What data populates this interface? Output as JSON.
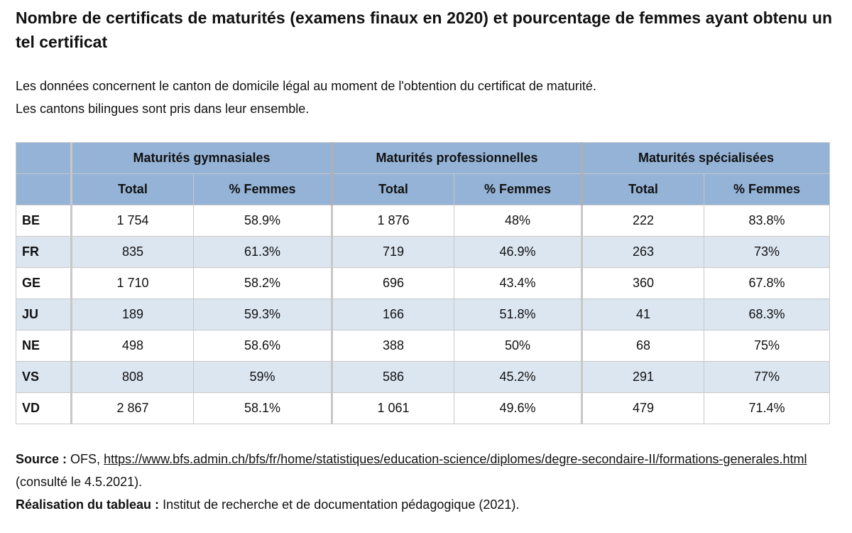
{
  "title": "Nombre de certificats de maturités (examens finaux en 2020) et pourcentage de femmes ayant obtenu un tel certificat",
  "subtitle": [
    "Les données concernent le canton de domicile légal au moment de l'obtention du certificat de maturité.",
    "Les cantons bilingues sont pris dans leur ensemble."
  ],
  "table": {
    "groups": [
      "Maturités gymnasiales",
      "Maturités professionnelles",
      "Maturités spécialisées"
    ],
    "subheaders": [
      "Total",
      "% Femmes",
      "Total",
      "% Femmes",
      "Total",
      "% Femmes"
    ],
    "rows": [
      {
        "canton": "BE",
        "values": [
          "1 754",
          "58.9%",
          "1 876",
          "48%",
          "222",
          "83.8%"
        ]
      },
      {
        "canton": "FR",
        "values": [
          "835",
          "61.3%",
          "719",
          "46.9%",
          "263",
          "73%"
        ]
      },
      {
        "canton": "GE",
        "values": [
          "1 710",
          "58.2%",
          "696",
          "43.4%",
          "360",
          "67.8%"
        ]
      },
      {
        "canton": "JU",
        "values": [
          "189",
          "59.3%",
          "166",
          "51.8%",
          "41",
          "68.3%"
        ]
      },
      {
        "canton": "NE",
        "values": [
          "498",
          "58.6%",
          "388",
          "50%",
          "68",
          "75%"
        ]
      },
      {
        "canton": "VS",
        "values": [
          "808",
          "59%",
          "586",
          "45.2%",
          "291",
          "77%"
        ]
      },
      {
        "canton": "VD",
        "values": [
          "2 867",
          "58.1%",
          "1 061",
          "49.6%",
          "479",
          "71.4%"
        ]
      }
    ]
  },
  "source": {
    "label": "Source :",
    "prefix": "OFS,",
    "link": "https://www.bfs.admin.ch/bfs/fr/home/statistiques/education-science/diplomes/degre-secondaire-II/formations-generales.html",
    "suffix": "(consulté le 4.5.2021).",
    "realisation_label": "Réalisation du tableau :",
    "realisation_text": "Institut de recherche et de documentation pédagogique (2021)."
  },
  "colors": {
    "header_bg": "#95b3d7",
    "row_alt_bg": "#dce6f1",
    "border": "#c8c8c8"
  }
}
